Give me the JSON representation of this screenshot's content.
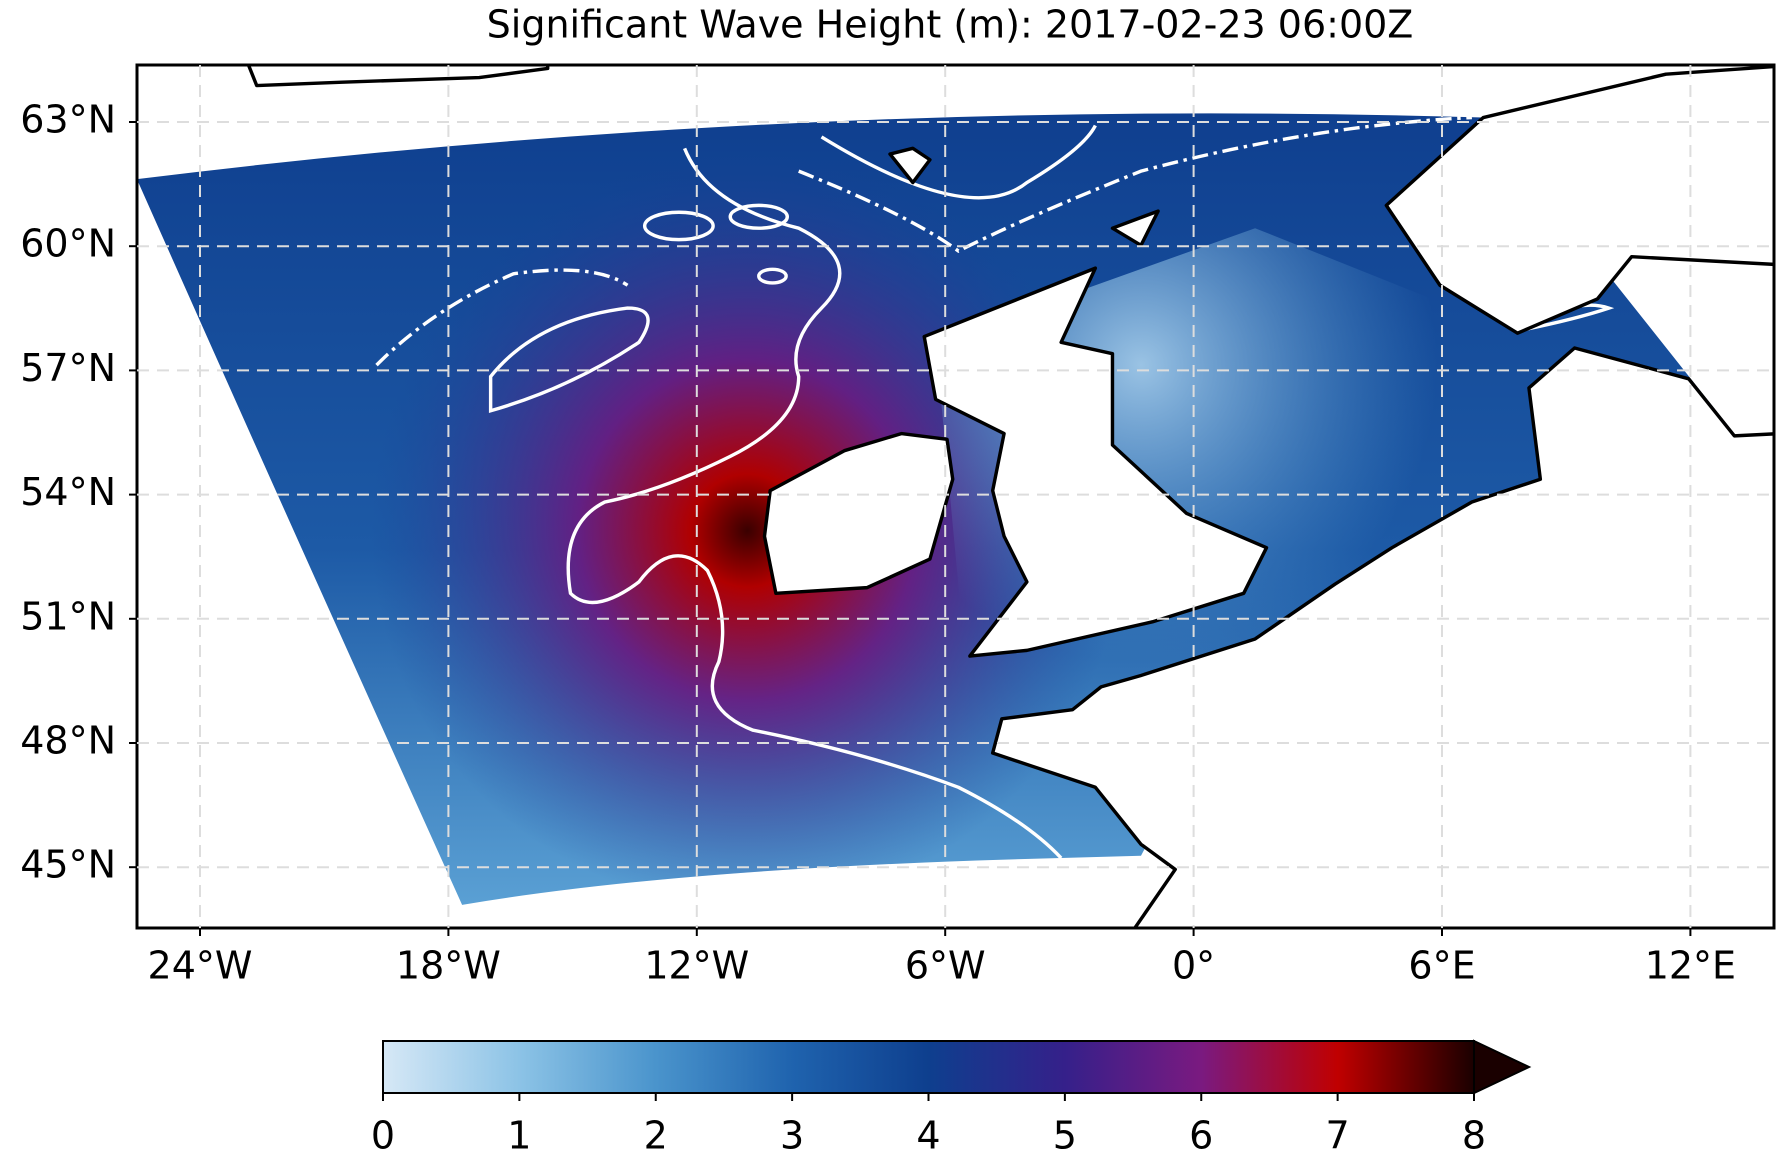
{
  "title": "Significant Wave Height (m): 2017-02-23 06:00Z",
  "map": {
    "lon_ticks": [
      {
        "value": -24,
        "label": "24°W"
      },
      {
        "value": -18,
        "label": "18°W"
      },
      {
        "value": -12,
        "label": "12°W"
      },
      {
        "value": -6,
        "label": "6°W"
      },
      {
        "value": 0,
        "label": "0°"
      },
      {
        "value": 6,
        "label": "6°E"
      },
      {
        "value": 12,
        "label": "12°E"
      }
    ],
    "lat_ticks": [
      {
        "value": 63,
        "label": "63°N"
      },
      {
        "value": 60,
        "label": "60°N"
      },
      {
        "value": 57,
        "label": "57°N"
      },
      {
        "value": 54,
        "label": "54°N"
      },
      {
        "value": 51,
        "label": "51°N"
      },
      {
        "value": 48,
        "label": "48°N"
      },
      {
        "value": 45,
        "label": "45°N"
      }
    ],
    "grid": true
  },
  "colorbar": {
    "range": [
      0,
      8
    ],
    "ticks": [
      0,
      1,
      2,
      3,
      4,
      5,
      6,
      7,
      8
    ],
    "colors": [
      "#d6e8f6",
      "#8cc3e6",
      "#4a94cc",
      "#1f63ae",
      "#0e3f8e",
      "#35208a",
      "#7a1a80",
      "#c00000",
      "#1a0000"
    ]
  }
}
